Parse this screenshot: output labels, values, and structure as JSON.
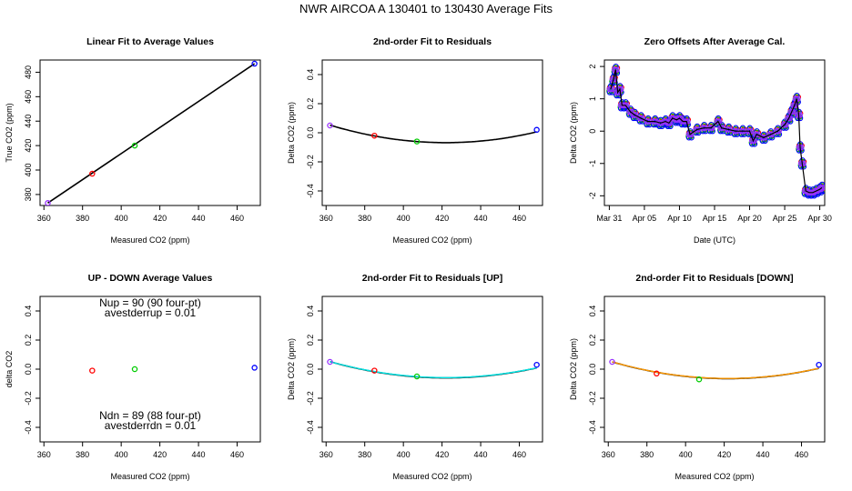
{
  "title": "NWR   AIRCOA A   130401 to 130430   Average Fits",
  "colors": {
    "red": "#ff0000",
    "green": "#00cc00",
    "blue": "#0000ff",
    "purple": "#9933ff",
    "cyan": "#00e5e5",
    "orange": "#ff9900",
    "black": "#000000"
  },
  "chart_data": [
    {
      "type": "scatter",
      "title": "Linear Fit to Average Values",
      "xlabel": "Measured CO2 (ppm)",
      "ylabel": "True CO2 (ppm)",
      "xlim": [
        358,
        472
      ],
      "ylim": [
        371,
        490
      ],
      "xticks": [
        360,
        380,
        400,
        420,
        440,
        460
      ],
      "yticks": [
        380,
        400,
        420,
        440,
        460,
        480
      ],
      "points": [
        {
          "x": 362,
          "y": 373,
          "color": "purple"
        },
        {
          "x": 385,
          "y": 397,
          "color": "red"
        },
        {
          "x": 407,
          "y": 420,
          "color": "green"
        },
        {
          "x": 469,
          "y": 487,
          "color": "blue"
        }
      ],
      "lines": [
        {
          "x": [
            362,
            469
          ],
          "y": [
            373,
            487
          ],
          "color": "black"
        }
      ]
    },
    {
      "type": "scatter",
      "title": "2nd-order Fit to Residuals",
      "xlabel": "Measured CO2 (ppm)",
      "ylabel": "Delta CO2 (ppm)",
      "xlim": [
        358,
        472
      ],
      "ylim": [
        -0.5,
        0.5
      ],
      "xticks": [
        360,
        380,
        400,
        420,
        440,
        460
      ],
      "yticks": [
        -0.4,
        -0.2,
        0.0,
        0.2,
        0.4
      ],
      "points": [
        {
          "x": 362,
          "y": 0.05,
          "color": "purple"
        },
        {
          "x": 385,
          "y": -0.02,
          "color": "red"
        },
        {
          "x": 407,
          "y": -0.06,
          "color": "green"
        },
        {
          "x": 469,
          "y": 0.02,
          "color": "blue"
        }
      ],
      "curves": [
        {
          "vertex": [
            422,
            -0.068
          ],
          "endpoints": [
            362,
            469
          ],
          "a": 3.35e-05,
          "color": "black"
        }
      ]
    },
    {
      "type": "line",
      "title": "Zero Offsets After Average Cal.",
      "xlabel": "Date (UTC)",
      "ylabel": "Delta CO2 (ppm)",
      "xlim": [
        -0.7,
        30.7
      ],
      "ylim": [
        -2.3,
        2.2
      ],
      "xticks": [
        0,
        5,
        10,
        15,
        20,
        25,
        30
      ],
      "xticklabels": [
        "Mar 31",
        "Apr 05",
        "Apr 10",
        "Apr 15",
        "Apr 20",
        "Apr 25",
        "Apr 30"
      ],
      "yticks": [
        -2,
        -1,
        0,
        1,
        2
      ],
      "series_color": [
        "red",
        "green",
        "blue",
        "purple"
      ],
      "mean_line_color": "black",
      "x": [
        0.2,
        0.6,
        0.9,
        1.2,
        1.5,
        1.8,
        2.3,
        3.0,
        3.6,
        4.5,
        5.5,
        6.5,
        7.3,
        8.0,
        8.5,
        9.0,
        9.6,
        10.0,
        10.5,
        11.0,
        11.5,
        12.5,
        13.5,
        14.5,
        15.5,
        16.0,
        17.0,
        18.0,
        19.0,
        20.0,
        20.5,
        21.0,
        22.0,
        23.0,
        24.0,
        25.0,
        25.6,
        26.0,
        26.4,
        26.7,
        27.0,
        27.2,
        27.5,
        28.0,
        28.5,
        29.0,
        29.5,
        30.0,
        30.3
      ],
      "y": [
        1.3,
        1.6,
        1.9,
        1.2,
        1.3,
        0.8,
        0.8,
        0.6,
        0.5,
        0.4,
        0.3,
        0.3,
        0.25,
        0.3,
        0.25,
        0.4,
        0.35,
        0.4,
        0.3,
        0.3,
        -0.1,
        0.05,
        0.1,
        0.1,
        0.3,
        0.1,
        0.05,
        0.0,
        0.0,
        0.0,
        -0.3,
        -0.1,
        -0.2,
        -0.1,
        0.0,
        0.2,
        0.4,
        0.6,
        0.8,
        1.0,
        0.5,
        -0.5,
        -1.0,
        -1.85,
        -1.9,
        -1.9,
        -1.85,
        -1.8,
        -1.75
      ]
    },
    {
      "type": "scatter",
      "title": "UP - DOWN Average Values",
      "xlabel": "Measured CO2 (ppm)",
      "ylabel": "delta CO2",
      "xlim": [
        358,
        472
      ],
      "ylim": [
        -0.5,
        0.5
      ],
      "xticks": [
        360,
        380,
        400,
        420,
        440,
        460
      ],
      "yticks": [
        -0.4,
        -0.2,
        0.0,
        0.2,
        0.4
      ],
      "points": [
        {
          "x": 385,
          "y": -0.01,
          "color": "red"
        },
        {
          "x": 407,
          "y": 0.0,
          "color": "green"
        },
        {
          "x": 469,
          "y": 0.01,
          "color": "blue"
        }
      ],
      "annotations": {
        "top1": "Nup = 90 (90 four-pt)",
        "top2": "avestderrup =  0.01",
        "bot1": "Ndn = 89 (88 four-pt)",
        "bot2": "avestderrdn =  0.01"
      }
    },
    {
      "type": "scatter",
      "title": "2nd-order Fit to Residuals [UP]",
      "xlabel": "Measured CO2 (ppm)",
      "ylabel": "Delta CO2 (ppm)",
      "xlim": [
        358,
        472
      ],
      "ylim": [
        -0.5,
        0.5
      ],
      "xticks": [
        360,
        380,
        400,
        420,
        440,
        460
      ],
      "yticks": [
        -0.4,
        -0.2,
        0.0,
        0.2,
        0.4
      ],
      "points": [
        {
          "x": 362,
          "y": 0.05,
          "color": "purple"
        },
        {
          "x": 385,
          "y": -0.01,
          "color": "red"
        },
        {
          "x": 407,
          "y": -0.05,
          "color": "green"
        },
        {
          "x": 469,
          "y": 0.03,
          "color": "blue"
        }
      ],
      "curves": [
        {
          "vertex": [
            422,
            -0.06
          ],
          "endpoints": [
            362,
            469
          ],
          "a": 3.1e-05,
          "color": "black"
        },
        {
          "vertex": [
            422,
            -0.058
          ],
          "endpoints": [
            362,
            469
          ],
          "a": 3.05e-05,
          "color": "cyan"
        }
      ]
    },
    {
      "type": "scatter",
      "title": "2nd-order Fit to Residuals [DOWN]",
      "xlabel": "Measured CO2 (ppm)",
      "ylabel": "Delta CO2 (ppm)",
      "xlim": [
        358,
        472
      ],
      "ylim": [
        -0.5,
        0.5
      ],
      "xticks": [
        360,
        380,
        400,
        420,
        440,
        460
      ],
      "yticks": [
        -0.4,
        -0.2,
        0.0,
        0.2,
        0.4
      ],
      "points": [
        {
          "x": 362,
          "y": 0.05,
          "color": "purple"
        },
        {
          "x": 385,
          "y": -0.03,
          "color": "red"
        },
        {
          "x": 407,
          "y": -0.07,
          "color": "green"
        },
        {
          "x": 469,
          "y": 0.03,
          "color": "blue"
        }
      ],
      "curves": [
        {
          "vertex": [
            422,
            -0.065
          ],
          "endpoints": [
            362,
            469
          ],
          "a": 3.2e-05,
          "color": "black"
        },
        {
          "vertex": [
            422,
            -0.064
          ],
          "endpoints": [
            362,
            469
          ],
          "a": 3.18e-05,
          "color": "orange"
        }
      ]
    }
  ]
}
